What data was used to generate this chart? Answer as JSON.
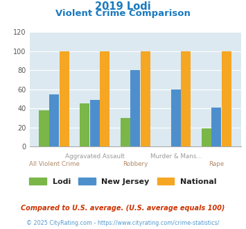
{
  "title_line1": "2019 Lodi",
  "title_line2": "Violent Crime Comparison",
  "categories": [
    "All Violent Crime",
    "Aggravated Assault",
    "Robbery",
    "Murder & Mans...",
    "Rape"
  ],
  "lodi": [
    38,
    45,
    30,
    0,
    19
  ],
  "new_jersey": [
    55,
    49,
    80,
    60,
    41
  ],
  "national": [
    100,
    100,
    100,
    100,
    100
  ],
  "lodi_color": "#7ab648",
  "nj_color": "#4d8fcc",
  "nat_color": "#f5a623",
  "ylim": [
    0,
    120
  ],
  "yticks": [
    0,
    20,
    40,
    60,
    80,
    100,
    120
  ],
  "bg_color": "#dce9f0",
  "fig_bg": "#ffffff",
  "title_color": "#1a7abf",
  "xlabel_color_odd": "#b08868",
  "xlabel_color_even": "#999999",
  "legend_labels": [
    "Lodi",
    "New Jersey",
    "National"
  ],
  "footnote1": "Compared to U.S. average. (U.S. average equals 100)",
  "footnote2": "© 2025 CityRating.com - https://www.cityrating.com/crime-statistics/",
  "footnote1_color": "#cc3300",
  "footnote2_color": "#5599cc",
  "label_top": [
    "",
    "Aggravated Assault",
    "",
    "Murder & Mans...",
    ""
  ],
  "label_bottom": [
    "All Violent Crime",
    "",
    "Robbery",
    "",
    "Rape"
  ]
}
